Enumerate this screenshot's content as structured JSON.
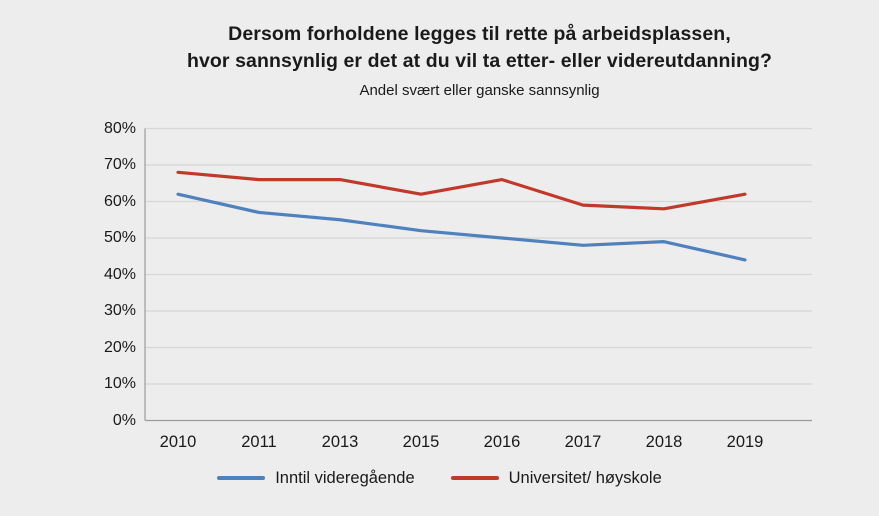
{
  "page": {
    "background": "#ededed",
    "text_color": "#1a1a1a"
  },
  "chart_data": {
    "type": "line",
    "title_lines": [
      "Dersom forholdene legges til rette på arbeidsplassen,",
      "hvor sannsynlig er det at du vil ta etter- eller videreutdanning?"
    ],
    "subtitle": "Andel svært eller ganske sannsynlig",
    "categories": [
      "2010",
      "2011",
      "2013",
      "2015",
      "2016",
      "2017",
      "2018",
      "2019"
    ],
    "series": [
      {
        "name": "Inntil videregående",
        "color": "#4f81bd",
        "values": [
          62,
          57,
          55,
          52,
          50,
          48,
          49,
          44
        ]
      },
      {
        "name": "Universitet/ høyskole",
        "color": "#c0392b",
        "values": [
          68,
          66,
          66,
          62,
          66,
          59,
          58,
          62
        ]
      }
    ],
    "ylim": [
      0,
      80
    ],
    "ytick_step": 10,
    "yticklabels": [
      "0%",
      "10%",
      "20%",
      "30%",
      "40%",
      "50%",
      "60%",
      "70%",
      "80%"
    ],
    "grid": "horizontal",
    "legend_position": "bottom",
    "gridline_color": "#d8d6d4",
    "axis_color": "#9e9c9a"
  }
}
